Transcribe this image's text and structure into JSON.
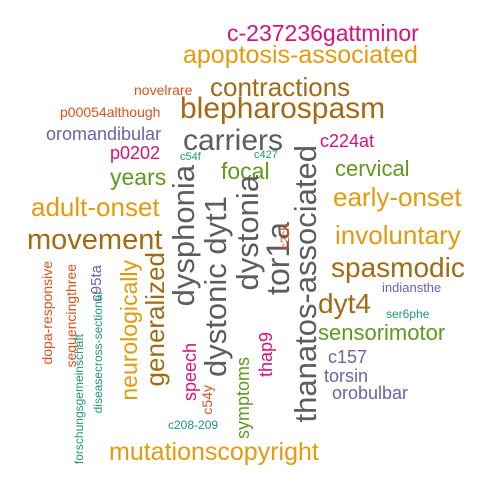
{
  "palette": {
    "magenta": "#d6137a",
    "orange": "#e49a0c",
    "brown": "#a06b14",
    "gray": "#5d5d5d",
    "red_orange": "#d9521a",
    "purple": "#6b64a8",
    "green": "#5d9a1e",
    "teal": "#21967a"
  },
  "words": {
    "c237236gattminor": "c-237236gattminor",
    "apoptosis_associated": "apoptosis-associated",
    "novelrare": "novelrare",
    "contractions": "contractions",
    "p00054although": "p00054although",
    "blepharospasm": "blepharospasm",
    "oromandibular": "oromandibular",
    "carriers": "carriers",
    "c224at": "c224at",
    "p0202": "p0202",
    "c54f": "c54f",
    "c427": "c427",
    "cervical": "cervical",
    "years": "years",
    "focal": "focal",
    "adult_onset": "adult-onset",
    "early_onset": "early-onset",
    "movement": "movement",
    "involuntary": "involuntary",
    "spasmodic": "spasmodic",
    "dyt4": "dyt4",
    "indiansthe": "indiansthe",
    "sensorimotor": "sensorimotor",
    "ser6phe": "ser6phe",
    "c157": "c157",
    "torsin": "torsin",
    "orobulbar": "orobulbar",
    "c208_209": "c208-209",
    "mutationscopyright": "mutationscopyright",
    "dysphonia": "dysphonia",
    "dystonic_dyt1": "dystonic dyt1",
    "dystonia": "dystonia",
    "tor1a": "tor1a",
    "thanatos_associated": "thanatos-associated",
    "c2ch": "c2ch",
    "generalized": "generalized",
    "neurologically": "neurologically",
    "speech": "speech",
    "thap9": "thap9",
    "symptoms": "symptoms",
    "c54y": "c54y",
    "c95ta": "c95ta",
    "dopa_responsive": "dopa-responsive",
    "sequencingthree": "sequencingthree",
    "diseasecross_sectional": "diseasecross-sectional",
    "forschungsgemeinschaft": "forschungsgemeinschaft"
  }
}
